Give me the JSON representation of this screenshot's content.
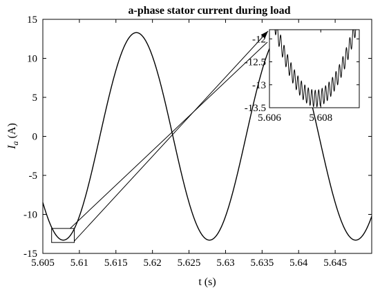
{
  "chart_data": [
    {
      "type": "line",
      "title": "a-phase stator current during load",
      "xlabel": "t (s)",
      "ylabel_symbol": "I",
      "ylabel_subscript": "a",
      "ylabel_unit": "(A)",
      "xlim": [
        5.605,
        5.65
      ],
      "ylim": [
        -15,
        15
      ],
      "xticks": [
        "5.605",
        "5.61",
        "5.615",
        "5.62",
        "5.625",
        "5.63",
        "5.635",
        "5.64",
        "5.645"
      ],
      "yticks": [
        "-15",
        "-10",
        "-5",
        "0",
        "5",
        "10",
        "15"
      ],
      "grid": false,
      "series": [
        {
          "color": "#000000",
          "amplitude": 13.3,
          "period": 0.02,
          "phase_time_of_first_minimum": 5.6078,
          "x": [
            5.605,
            5.6075,
            5.6078,
            5.6128,
            5.6178,
            5.6228,
            5.6278,
            5.6328,
            5.6378,
            5.6428,
            5.6478,
            5.65
          ],
          "y": [
            -8.0,
            -13.3,
            -13.3,
            0,
            13.3,
            0,
            -13.3,
            0,
            13.3,
            0,
            -13.3,
            -8.0
          ]
        }
      ],
      "zoom_box": {
        "x": [
          5.6062,
          5.6093
        ],
        "y": [
          -13.6,
          -11.8
        ]
      },
      "annotation": "arrow from zoom box to inset"
    },
    {
      "type": "line",
      "role": "inset",
      "xlim": [
        5.606,
        5.6095
      ],
      "ylim": [
        -13.5,
        -11.8
      ],
      "xticks": [
        "5.606",
        "5.608"
      ],
      "yticks": [
        "-12",
        "-12.5",
        "-13",
        "-13.5"
      ],
      "grid": false,
      "series": [
        {
          "color": "#000000",
          "ripple_amplitude": 0.18,
          "ripple_cycles": 26
        }
      ]
    }
  ]
}
